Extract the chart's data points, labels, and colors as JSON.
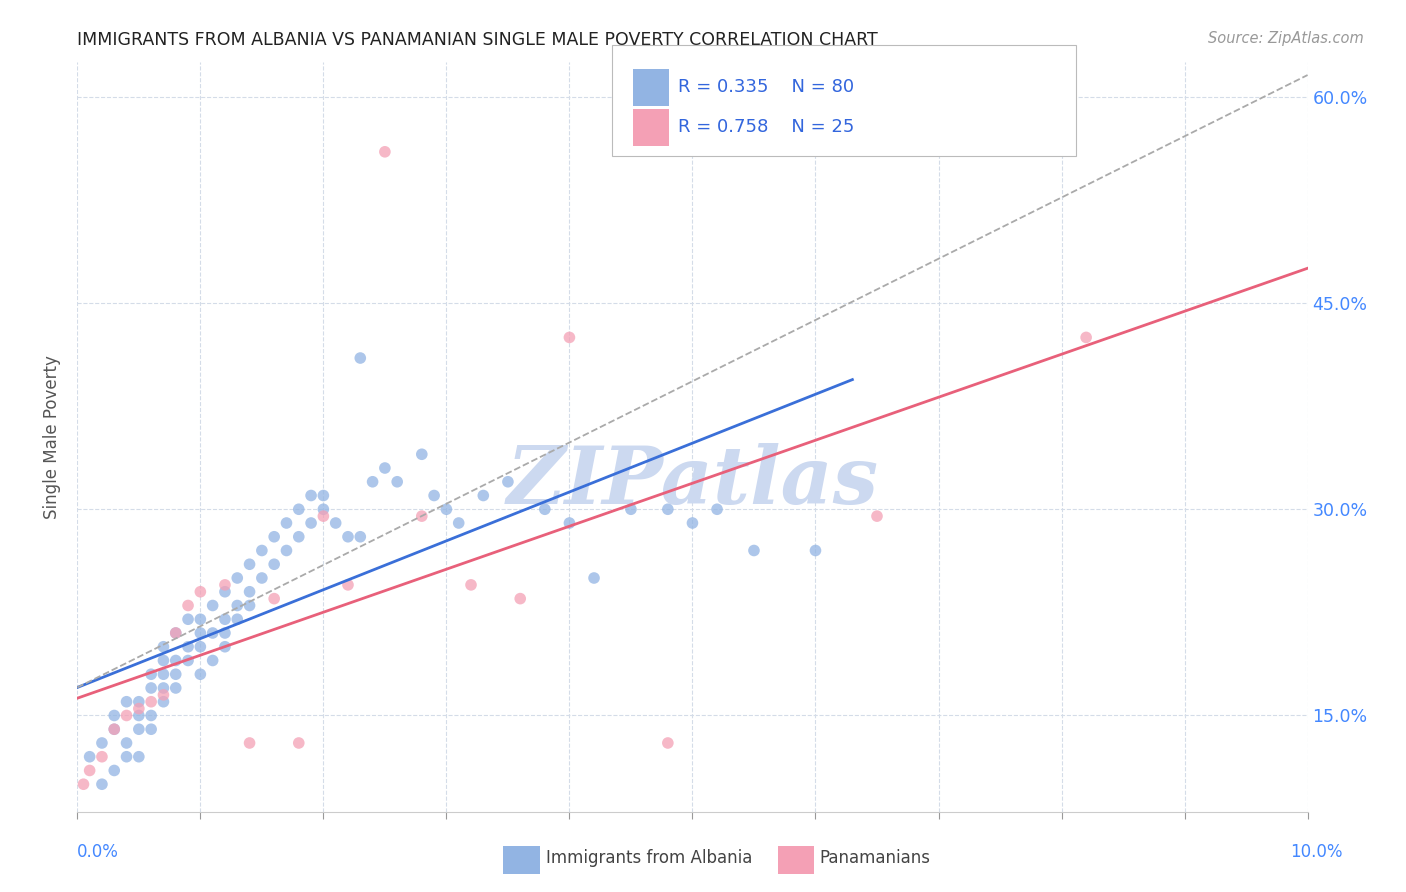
{
  "title": "IMMIGRANTS FROM ALBANIA VS PANAMANIAN SINGLE MALE POVERTY CORRELATION CHART",
  "source": "Source: ZipAtlas.com",
  "ylabel": "Single Male Poverty",
  "legend1_r": "R = 0.335",
  "legend1_n": "N = 80",
  "legend2_r": "R = 0.758",
  "legend2_n": "N = 25",
  "legend1_label": "Immigrants from Albania",
  "legend2_label": "Panamanians",
  "albania_color": "#92b4e3",
  "panama_color": "#f4a0b5",
  "regression_blue": "#3a6fd8",
  "regression_pink": "#e8607a",
  "regression_gray_dashed": "#aaaaaa",
  "albania_x": [
    0.001,
    0.002,
    0.002,
    0.003,
    0.003,
    0.003,
    0.004,
    0.004,
    0.004,
    0.005,
    0.005,
    0.005,
    0.005,
    0.006,
    0.006,
    0.006,
    0.006,
    0.007,
    0.007,
    0.007,
    0.007,
    0.007,
    0.008,
    0.008,
    0.008,
    0.008,
    0.009,
    0.009,
    0.009,
    0.01,
    0.01,
    0.01,
    0.01,
    0.011,
    0.011,
    0.011,
    0.012,
    0.012,
    0.012,
    0.012,
    0.013,
    0.013,
    0.013,
    0.014,
    0.014,
    0.014,
    0.015,
    0.015,
    0.016,
    0.016,
    0.017,
    0.017,
    0.018,
    0.018,
    0.019,
    0.019,
    0.02,
    0.02,
    0.021,
    0.022,
    0.023,
    0.023,
    0.024,
    0.025,
    0.026,
    0.028,
    0.029,
    0.03,
    0.031,
    0.033,
    0.035,
    0.038,
    0.04,
    0.042,
    0.045,
    0.048,
    0.05,
    0.052,
    0.055,
    0.06
  ],
  "albania_y": [
    0.12,
    0.1,
    0.13,
    0.14,
    0.15,
    0.11,
    0.16,
    0.13,
    0.12,
    0.14,
    0.15,
    0.16,
    0.12,
    0.17,
    0.18,
    0.15,
    0.14,
    0.18,
    0.17,
    0.19,
    0.16,
    0.2,
    0.19,
    0.21,
    0.18,
    0.17,
    0.2,
    0.22,
    0.19,
    0.21,
    0.2,
    0.22,
    0.18,
    0.23,
    0.21,
    0.19,
    0.22,
    0.24,
    0.2,
    0.21,
    0.23,
    0.25,
    0.22,
    0.24,
    0.26,
    0.23,
    0.25,
    0.27,
    0.26,
    0.28,
    0.27,
    0.29,
    0.28,
    0.3,
    0.29,
    0.31,
    0.3,
    0.31,
    0.29,
    0.28,
    0.41,
    0.28,
    0.32,
    0.33,
    0.32,
    0.34,
    0.31,
    0.3,
    0.29,
    0.31,
    0.32,
    0.3,
    0.29,
    0.25,
    0.3,
    0.3,
    0.29,
    0.3,
    0.27,
    0.27
  ],
  "panama_x": [
    0.0005,
    0.001,
    0.002,
    0.003,
    0.004,
    0.005,
    0.006,
    0.007,
    0.008,
    0.009,
    0.01,
    0.012,
    0.014,
    0.016,
    0.018,
    0.02,
    0.022,
    0.025,
    0.028,
    0.032,
    0.036,
    0.04,
    0.048,
    0.065,
    0.082
  ],
  "panama_y": [
    0.1,
    0.11,
    0.12,
    0.14,
    0.15,
    0.155,
    0.16,
    0.165,
    0.21,
    0.23,
    0.24,
    0.245,
    0.13,
    0.235,
    0.13,
    0.295,
    0.245,
    0.56,
    0.295,
    0.245,
    0.235,
    0.425,
    0.13,
    0.295,
    0.425
  ],
  "xlim": [
    0.0,
    0.1
  ],
  "ylim": [
    0.08,
    0.625
  ],
  "yticks": [
    0.15,
    0.3,
    0.45,
    0.6
  ],
  "ytick_labels": [
    "15.0%",
    "30.0%",
    "45.0%",
    "60.0%"
  ],
  "watermark": "ZIPatlas",
  "watermark_color": "#ccd9f0",
  "marker_size": 70,
  "marker_alpha": 0.75
}
